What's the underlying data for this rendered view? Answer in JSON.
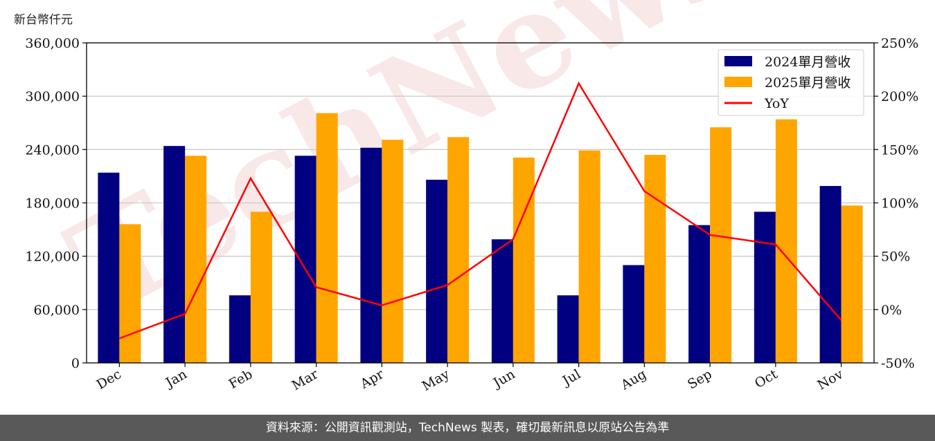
{
  "unit_label": "新台幣仟元",
  "footer_text": "資料來源：公開資訊觀測站，TechNews 製表，確切最新訊息以原站公告為準",
  "watermark_text": "TechNews",
  "chart_data": {
    "type": "bar",
    "categories": [
      "Dec",
      "Jan",
      "Feb",
      "Mar",
      "Apr",
      "May",
      "Jun",
      "Jul",
      "Aug",
      "Sep",
      "Oct",
      "Nov"
    ],
    "series": [
      {
        "name": "2024單月營收",
        "type": "bar",
        "axis": "left",
        "color": "#000080",
        "values": [
          214000,
          244000,
          76000,
          233000,
          242000,
          206000,
          139000,
          76000,
          110000,
          155000,
          170000,
          199000
        ]
      },
      {
        "name": "2025單月營收",
        "type": "bar",
        "axis": "left",
        "color": "#FFA500",
        "values": [
          156000,
          233000,
          170000,
          281000,
          251000,
          254000,
          231000,
          239000,
          234000,
          265000,
          274000,
          177000
        ]
      },
      {
        "name": "YoY",
        "type": "line",
        "axis": "right",
        "color": "#FF0000",
        "values": [
          -27,
          -4,
          123,
          21,
          4,
          23,
          66,
          212,
          111,
          70,
          61,
          -10
        ]
      }
    ],
    "y_left": {
      "min": 0,
      "max": 360000,
      "ticks": [
        "0",
        "60,000",
        "120,000",
        "180,000",
        "240,000",
        "300,000",
        "360,000"
      ],
      "tick_values": [
        0,
        60000,
        120000,
        180000,
        240000,
        300000,
        360000
      ]
    },
    "y_right": {
      "min": -50,
      "max": 250,
      "ticks": [
        "-50%",
        "0%",
        "50%",
        "100%",
        "150%",
        "200%",
        "250%"
      ],
      "tick_values": [
        -50,
        0,
        50,
        100,
        150,
        200,
        250
      ]
    },
    "grid": "horizontal",
    "legend": "top-right"
  }
}
